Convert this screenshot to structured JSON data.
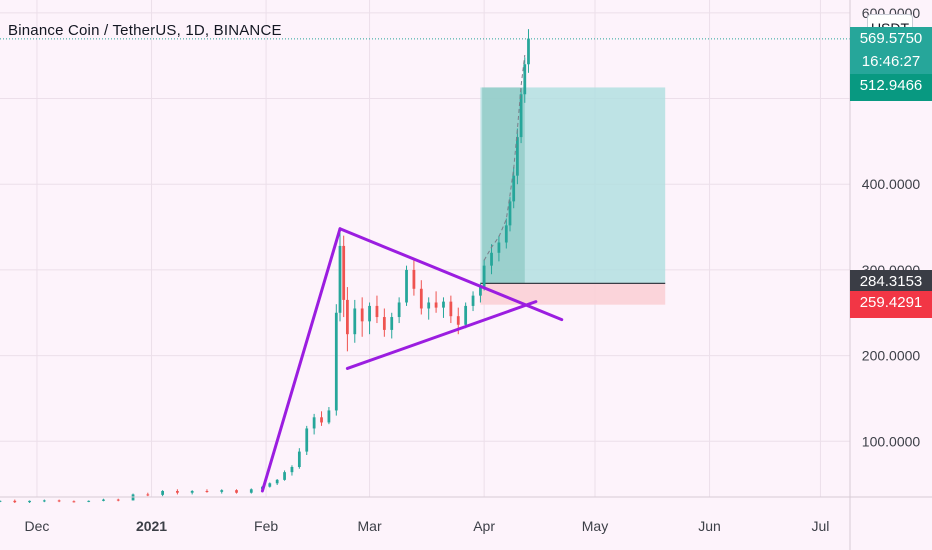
{
  "header": {
    "title": "Binance Coin / TetherUS, 1D, BINANCE",
    "unit": "USDT"
  },
  "price_tags": [
    {
      "value": "569.5750",
      "sub": "16:46:27",
      "color": "#26a69a",
      "text_color": "#ffffff"
    },
    {
      "value": "512.9466",
      "color": "#089981",
      "text_color": "#ffffff"
    },
    {
      "value": "284.3153",
      "color": "#3a3d45",
      "text_color": "#ffffff"
    },
    {
      "value": "259.4291",
      "color": "#f23645",
      "text_color": "#ffffff"
    }
  ],
  "chart_data": {
    "type": "candlestick",
    "title": "Binance Coin / TetherUS, 1D, BINANCE",
    "xlabel": "",
    "ylabel": "",
    "x_ticks": [
      {
        "label": "Dec",
        "date": "2020-12-01"
      },
      {
        "label": "2021",
        "date": "2021-01-01",
        "bold": true
      },
      {
        "label": "Feb",
        "date": "2021-02-01"
      },
      {
        "label": "Mar",
        "date": "2021-03-01"
      },
      {
        "label": "Apr",
        "date": "2021-04-01"
      },
      {
        "label": "May",
        "date": "2021-05-01"
      },
      {
        "label": "Jun",
        "date": "2021-06-01"
      },
      {
        "label": "Jul",
        "date": "2021-07-01"
      }
    ],
    "y_ticks": [
      {
        "label": "100.0000",
        "value": 100
      },
      {
        "label": "200.0000",
        "value": 200
      },
      {
        "label": "400.0000",
        "value": 400
      }
    ],
    "y_ticks_partial": [
      {
        "label": "600.0000",
        "value": 600
      },
      {
        "label": "300.0000",
        "value": 300
      }
    ],
    "xlim": [
      "2020-11-21",
      "2021-07-09"
    ],
    "ylim": [
      35,
      615
    ],
    "up_color": "#26a69a",
    "down_color": "#ef5350",
    "candles": [
      [
        "2020-11-21",
        30,
        31,
        29,
        30.5
      ],
      [
        "2020-11-25",
        30.5,
        32,
        28,
        29
      ],
      [
        "2020-11-29",
        29,
        31,
        28,
        30.5
      ],
      [
        "2020-12-03",
        30.5,
        32,
        29,
        31
      ],
      [
        "2020-12-07",
        31,
        32,
        29,
        30
      ],
      [
        "2020-12-11",
        30,
        31,
        28.5,
        29.5
      ],
      [
        "2020-12-15",
        29.5,
        31,
        29,
        30.5
      ],
      [
        "2020-12-19",
        30.5,
        33,
        30,
        32
      ],
      [
        "2020-12-23",
        32,
        33,
        30,
        31
      ],
      [
        "2020-12-27",
        31,
        39,
        31,
        38
      ],
      [
        "2020-12-31",
        38,
        40,
        36,
        37.5
      ],
      [
        "2021-01-04",
        37.5,
        43,
        36,
        42
      ],
      [
        "2021-01-08",
        42,
        44,
        38,
        40
      ],
      [
        "2021-01-12",
        40,
        43,
        38,
        42
      ],
      [
        "2021-01-16",
        42,
        44,
        40,
        41
      ],
      [
        "2021-01-20",
        41,
        44,
        39,
        43
      ],
      [
        "2021-01-24",
        43,
        44,
        39,
        40
      ],
      [
        "2021-01-28",
        40,
        45,
        39,
        44
      ],
      [
        "2021-01-31",
        44,
        48,
        43,
        47
      ],
      [
        "2021-02-02",
        47,
        52,
        46,
        51
      ],
      [
        "2021-02-04",
        51,
        56,
        49,
        55
      ],
      [
        "2021-02-06",
        55,
        66,
        54,
        64
      ],
      [
        "2021-02-08",
        64,
        72,
        60,
        70
      ],
      [
        "2021-02-10",
        70,
        92,
        68,
        88
      ],
      [
        "2021-02-12",
        88,
        118,
        84,
        115
      ],
      [
        "2021-02-14",
        115,
        132,
        108,
        128
      ],
      [
        "2021-02-16",
        128,
        135,
        118,
        122
      ],
      [
        "2021-02-18",
        122,
        140,
        120,
        136
      ],
      [
        "2021-02-20",
        136,
        260,
        130,
        250
      ],
      [
        "2021-02-21",
        250,
        350,
        240,
        328
      ],
      [
        "2021-02-22",
        328,
        340,
        245,
        265
      ],
      [
        "2021-02-23",
        265,
        280,
        205,
        225
      ],
      [
        "2021-02-25",
        225,
        265,
        215,
        255
      ],
      [
        "2021-02-27",
        255,
        268,
        222,
        240
      ],
      [
        "2021-03-01",
        240,
        262,
        225,
        258
      ],
      [
        "2021-03-03",
        258,
        270,
        238,
        245
      ],
      [
        "2021-03-05",
        245,
        255,
        222,
        230
      ],
      [
        "2021-03-07",
        230,
        250,
        220,
        245
      ],
      [
        "2021-03-09",
        245,
        268,
        238,
        262
      ],
      [
        "2021-03-11",
        262,
        305,
        258,
        300
      ],
      [
        "2021-03-13",
        300,
        312,
        270,
        278
      ],
      [
        "2021-03-15",
        278,
        288,
        248,
        255
      ],
      [
        "2021-03-17",
        255,
        268,
        242,
        262
      ],
      [
        "2021-03-19",
        262,
        275,
        250,
        256
      ],
      [
        "2021-03-21",
        256,
        268,
        244,
        263
      ],
      [
        "2021-03-23",
        263,
        270,
        238,
        246
      ],
      [
        "2021-03-25",
        246,
        256,
        225,
        236
      ],
      [
        "2021-03-27",
        236,
        262,
        232,
        258
      ],
      [
        "2021-03-29",
        258,
        275,
        252,
        270
      ],
      [
        "2021-03-31",
        270,
        285,
        262,
        280
      ],
      [
        "2021-04-01",
        280,
        312,
        276,
        305
      ],
      [
        "2021-04-03",
        305,
        330,
        295,
        320
      ],
      [
        "2021-04-05",
        320,
        340,
        310,
        332
      ],
      [
        "2021-04-07",
        332,
        360,
        325,
        352
      ],
      [
        "2021-04-08",
        352,
        385,
        345,
        380
      ],
      [
        "2021-04-09",
        380,
        420,
        372,
        410
      ],
      [
        "2021-04-10",
        410,
        465,
        400,
        455
      ],
      [
        "2021-04-11",
        455,
        512,
        448,
        505
      ],
      [
        "2021-04-12",
        505,
        548,
        495,
        540
      ],
      [
        "2021-04-13",
        540,
        581,
        530,
        570
      ]
    ],
    "annotations": {
      "trend_lines": [
        {
          "x1": "2021-01-31",
          "y1": 42,
          "x2": "2021-02-21",
          "y2": 348
        },
        {
          "x1": "2021-02-21",
          "y1": 348,
          "x2": "2021-04-22",
          "y2": 242
        },
        {
          "x1": "2021-02-23",
          "y1": 185,
          "x2": "2021-04-15",
          "y2": 263
        }
      ],
      "long_position": {
        "start": "2021-03-31",
        "end": "2021-05-20",
        "entry": 284.3153,
        "target": 512.9466,
        "stop": 259.4291,
        "profit_color": "#b3dfe0",
        "stop_color": "#fbd0d6",
        "entry_line_color": "#3a3d45"
      },
      "bar_pattern": {
        "start": "2021-04-01",
        "end": "2021-04-12",
        "fill": "#8fcac4",
        "dash_color": "#7a7e8a"
      },
      "last_price_line": {
        "value": 569.575,
        "color": "#26a69a"
      }
    },
    "grid": true,
    "legend": "none"
  }
}
